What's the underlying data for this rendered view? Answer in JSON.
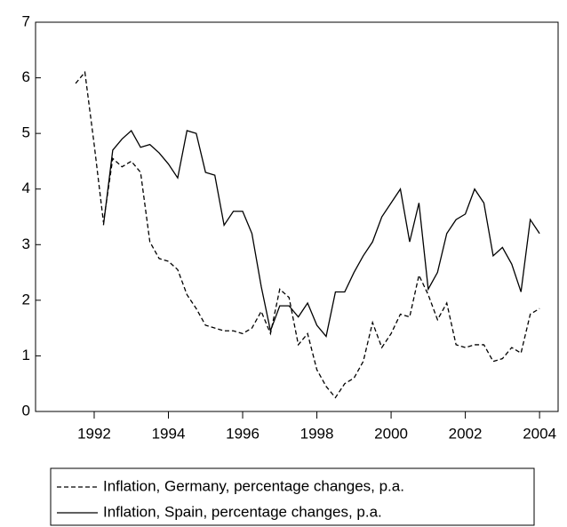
{
  "chart_data": {
    "type": "line",
    "x": [
      1991.5,
      1991.75,
      1992,
      1992.25,
      1992.5,
      1992.75,
      1993,
      1993.25,
      1993.5,
      1993.75,
      1994,
      1994.25,
      1994.5,
      1994.75,
      1995,
      1995.25,
      1995.5,
      1995.75,
      1996,
      1996.25,
      1996.5,
      1996.75,
      1997,
      1997.25,
      1997.5,
      1997.75,
      1998,
      1998.25,
      1998.5,
      1998.75,
      1999,
      1999.25,
      1999.5,
      1999.75,
      2000,
      2000.25,
      2000.5,
      2000.75,
      2001,
      2001.25,
      2001.5,
      2001.75,
      2002,
      2002.25,
      2002.5,
      2002.75,
      2003,
      2003.25,
      2003.5,
      2003.75,
      2004
    ],
    "series": [
      {
        "name": "Inflation, Germany, percentage changes, p.a.",
        "color": "#000000",
        "style": "dashed",
        "values": [
          5.9,
          6.1,
          4.8,
          3.4,
          4.55,
          4.4,
          4.5,
          4.3,
          3.05,
          2.75,
          2.7,
          2.55,
          2.1,
          1.85,
          1.55,
          1.5,
          1.45,
          1.45,
          1.4,
          1.5,
          1.8,
          1.4,
          2.2,
          2.05,
          1.2,
          1.4,
          0.75,
          0.45,
          0.25,
          0.5,
          0.6,
          0.9,
          1.6,
          1.15,
          1.4,
          1.75,
          1.7,
          2.45,
          2.1,
          1.65,
          1.95,
          1.2,
          1.15,
          1.2,
          1.2,
          0.9,
          0.95,
          1.15,
          1.05,
          1.75,
          1.85
        ]
      },
      {
        "name": "Inflation, Spain, percentage changes, p.a.",
        "color": "#000000",
        "style": "solid",
        "values": [
          null,
          null,
          null,
          3.35,
          4.7,
          4.9,
          5.05,
          4.75,
          4.8,
          4.65,
          4.45,
          4.2,
          5.05,
          5.0,
          4.3,
          4.25,
          3.35,
          3.6,
          3.6,
          3.2,
          2.25,
          1.45,
          1.9,
          1.9,
          1.7,
          1.95,
          1.55,
          1.35,
          2.15,
          2.15,
          2.5,
          2.8,
          3.05,
          3.5,
          3.75,
          4.0,
          3.05,
          3.75,
          2.2,
          2.5,
          3.2,
          3.45,
          3.55,
          4.0,
          3.75,
          2.8,
          2.95,
          2.65,
          2.15,
          3.45,
          3.2
        ]
      }
    ],
    "xlim": [
      1990.42,
      2004.5
    ],
    "xticks": [
      1992,
      1994,
      1996,
      1998,
      2000,
      2002,
      2004
    ],
    "ylim": [
      0,
      7
    ],
    "yticks": [
      0,
      1,
      2,
      3,
      4,
      5,
      6,
      7
    ]
  }
}
